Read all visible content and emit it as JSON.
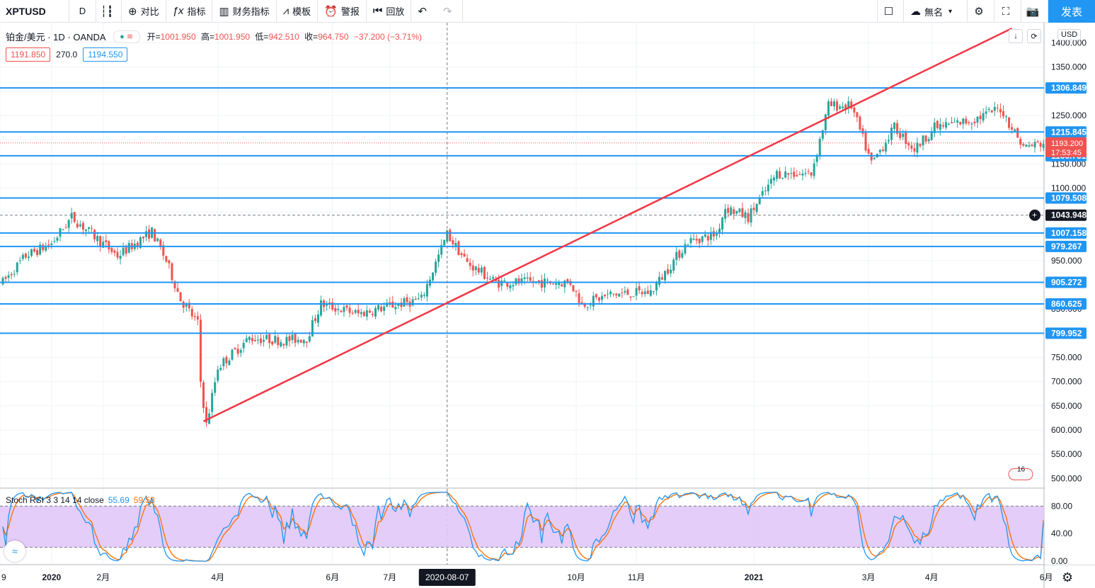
{
  "toolbar": {
    "symbol": "XPTUSD",
    "interval": "D",
    "compare": "对比",
    "indicators": "指标",
    "financials": "财务指标",
    "templates": "模板",
    "alert": "警报",
    "replay": "回放",
    "layout_name": "無名",
    "publish": "发表"
  },
  "legend": {
    "title": "铂金/美元 · 1D · OANDA",
    "open_label": "开=",
    "open": "1001.950",
    "high_label": "高=",
    "high": "1001.950",
    "low_label": "低=",
    "low": "942.510",
    "close_label": "收=",
    "close": "964.750",
    "change": "−37.200 (−3.71%)"
  },
  "quote": {
    "bid": "1191.850",
    "spread": "270.0",
    "ask": "1194.550"
  },
  "currency": "USD",
  "price_axis": {
    "ticks": [
      "1400.000",
      "1350.000",
      "1250.000",
      "1150.000",
      "1100.000",
      "950.000",
      "850.000",
      "750.000",
      "700.000",
      "650.000",
      "600.000",
      "550.000",
      "500.000"
    ],
    "labels": [
      {
        "text": "1306.849",
        "price": 1306.849,
        "style": "blue"
      },
      {
        "text": "1215.845",
        "price": 1215.845,
        "style": "blue"
      },
      {
        "text": "1166.731",
        "price": 1166.731,
        "style": "blue"
      },
      {
        "text": "1079.508",
        "price": 1079.508,
        "style": "blue"
      },
      {
        "text": "1043.948",
        "price": 1043.948,
        "style": "dark"
      },
      {
        "text": "1007.158",
        "price": 1007.158,
        "style": "blue"
      },
      {
        "text": "979.267",
        "price": 979.267,
        "style": "blue"
      },
      {
        "text": "905.272",
        "price": 905.272,
        "style": "blue"
      },
      {
        "text": "860.625",
        "price": 860.625,
        "style": "blue"
      },
      {
        "text": "799.952",
        "price": 799.952,
        "style": "blue"
      }
    ],
    "last_price": "1193.200",
    "countdown": "17:53:45",
    "event_badge": "16"
  },
  "time_axis": {
    "labels": [
      {
        "text": "9",
        "index": -1
      },
      {
        "text": "2020",
        "index": 17
      },
      {
        "text": "2月",
        "index": 35
      },
      {
        "text": "4月",
        "index": 75
      },
      {
        "text": "6月",
        "index": 115
      },
      {
        "text": "7月",
        "index": 135
      },
      {
        "text": "10月",
        "index": 200
      },
      {
        "text": "11月",
        "index": 221
      },
      {
        "text": "2021",
        "index": 262
      },
      {
        "text": "3月",
        "index": 302
      },
      {
        "text": "4月",
        "index": 324
      },
      {
        "text": "6月",
        "index": 364
      }
    ],
    "crosshair_date": "2020-08-07"
  },
  "indicator": {
    "name": "Stoch RSI 3 3 14 14 close",
    "k": "55.69",
    "d": "59.58",
    "ticks": [
      "80.00",
      "40.00",
      "0.00"
    ]
  },
  "chart_data": {
    "type": "candlestick",
    "symbol": "XPTUSD",
    "ylim": [
      480,
      1430
    ],
    "horizontal_levels": [
      1306.849,
      1215.845,
      1166.731,
      1079.508,
      1007.158,
      979.267,
      905.272,
      860.625,
      799.952
    ],
    "dashed_level": 1043.948,
    "trendline": {
      "from": {
        "index": 70,
        "price": 618
      },
      "to": {
        "index": 352,
        "price": 1430
      }
    },
    "anchors": [
      [
        0,
        905
      ],
      [
        8,
        960
      ],
      [
        17,
        985
      ],
      [
        24,
        1040
      ],
      [
        30,
        1010
      ],
      [
        40,
        960
      ],
      [
        52,
        1010
      ],
      [
        57,
        950
      ],
      [
        62,
        870
      ],
      [
        68,
        820
      ],
      [
        69,
        700
      ],
      [
        71,
        610
      ],
      [
        75,
        730
      ],
      [
        86,
        790
      ],
      [
        98,
        785
      ],
      [
        106,
        790
      ],
      [
        111,
        860
      ],
      [
        124,
        840
      ],
      [
        134,
        855
      ],
      [
        146,
        870
      ],
      [
        155,
        1005
      ],
      [
        162,
        945
      ],
      [
        172,
        905
      ],
      [
        183,
        905
      ],
      [
        198,
        905
      ],
      [
        202,
        860
      ],
      [
        212,
        880
      ],
      [
        226,
        885
      ],
      [
        239,
        990
      ],
      [
        249,
        1005
      ],
      [
        252,
        1060
      ],
      [
        260,
        1040
      ],
      [
        270,
        1130
      ],
      [
        282,
        1130
      ],
      [
        288,
        1270
      ],
      [
        296,
        1270
      ],
      [
        303,
        1150
      ],
      [
        311,
        1225
      ],
      [
        318,
        1180
      ],
      [
        325,
        1225
      ],
      [
        338,
        1240
      ],
      [
        348,
        1265
      ],
      [
        356,
        1185
      ],
      [
        363,
        1193
      ]
    ],
    "stoch_rsi": {
      "ylim": [
        -5,
        105
      ],
      "bands": [
        80,
        20
      ],
      "k_last": 55.69,
      "d_last": 59.58
    }
  }
}
